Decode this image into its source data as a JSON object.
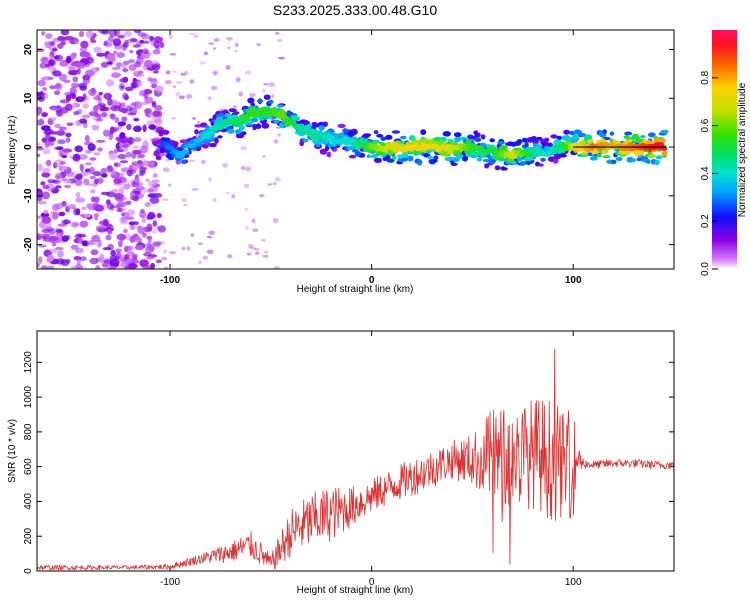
{
  "title": "S233.2025.333.00.48.G10",
  "chart_data": [
    {
      "type": "heatmap",
      "xlabel": "Height of straight line (km)",
      "ylabel": "Frequency (Hz)",
      "xlim": [
        -166,
        150
      ],
      "ylim": [
        -25,
        24
      ],
      "x_ticks": [
        -100,
        0,
        100
      ],
      "y_ticks": [
        -20,
        -10,
        0,
        10,
        20
      ],
      "colorbar": {
        "label": "Normalized spectral amplitude",
        "range": [
          0,
          1
        ],
        "ticks": [
          "0.0",
          "0.2",
          "0.4",
          "0.6",
          "0.8"
        ],
        "tick_values": [
          0.0,
          0.2,
          0.4,
          0.6,
          0.8
        ]
      },
      "ridge": {
        "height_km": [
          -104,
          -95,
          -88,
          -80,
          -72,
          -66,
          -60,
          -52,
          -44,
          -36,
          -28,
          -20,
          -10,
          0,
          10,
          20,
          30,
          40,
          50,
          60,
          70,
          80,
          88,
          95,
          100,
          110,
          120,
          130,
          140,
          146
        ],
        "frequency_hz": [
          0.5,
          -1.5,
          1.0,
          3.0,
          5.5,
          5.0,
          7.0,
          7.5,
          6.5,
          4.0,
          2.5,
          1.5,
          1.0,
          0.0,
          0.0,
          0.0,
          0.0,
          -0.5,
          0.0,
          -1.0,
          -1.5,
          -1.0,
          -1.0,
          0.5,
          0.0,
          0.0,
          0.0,
          0.0,
          0.0,
          0.0
        ],
        "amplitude": [
          0.25,
          0.35,
          0.35,
          0.4,
          0.45,
          0.5,
          0.55,
          0.55,
          0.6,
          0.45,
          0.45,
          0.4,
          0.4,
          0.6,
          0.7,
          0.75,
          0.75,
          0.7,
          0.55,
          0.5,
          0.7,
          0.45,
          0.4,
          0.5,
          0.7,
          0.85,
          0.8,
          0.85,
          0.95,
          0.95
        ]
      }
    },
    {
      "type": "line",
      "xlabel": "Height of straight line (km)",
      "ylabel": "SNR (10 * v/v)",
      "xlim": [
        -166,
        150
      ],
      "ylim": [
        0,
        1380
      ],
      "x_ticks": [
        -100,
        0,
        100
      ],
      "y_ticks": [
        0,
        200,
        400,
        600,
        800,
        1000,
        1200
      ],
      "color": "#e03030",
      "series": [
        {
          "name": "SNR",
          "x": [
            -166,
            -120,
            -100,
            -85,
            -70,
            -60,
            -55,
            -50,
            -45,
            -40,
            -30,
            -20,
            -10,
            0,
            10,
            20,
            30,
            40,
            50,
            60,
            70,
            80,
            90,
            95,
            100,
            103,
            105,
            110,
            120,
            130,
            140,
            150
          ],
          "y": [
            20,
            20,
            25,
            70,
            110,
            150,
            100,
            40,
            130,
            220,
            290,
            330,
            370,
            430,
            490,
            540,
            590,
            640,
            640,
            660,
            650,
            680,
            640,
            610,
            620,
            640,
            620,
            610,
            620,
            620,
            610,
            610
          ],
          "noise": [
            15,
            12,
            15,
            30,
            60,
            80,
            70,
            50,
            100,
            140,
            160,
            160,
            120,
            100,
            100,
            110,
            110,
            110,
            150,
            280,
            300,
            320,
            360,
            300,
            320,
            80,
            30,
            25,
            25,
            25,
            25,
            25
          ]
        }
      ]
    }
  ]
}
